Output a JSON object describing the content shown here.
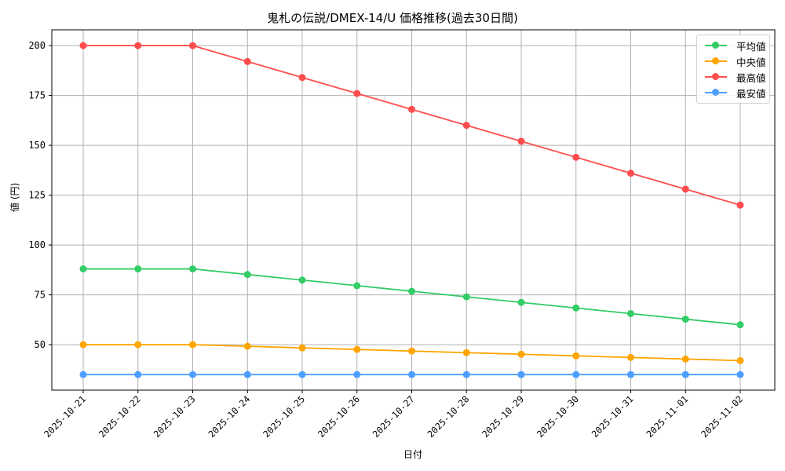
{
  "chart_data": {
    "type": "line",
    "title": "鬼札の伝説/DMEX-14/U 価格推移(過去30日間)",
    "xlabel": "日付",
    "ylabel": "値 (円)",
    "x": [
      "2025-10-21",
      "2025-10-22",
      "2025-10-23",
      "2025-10-24",
      "2025-10-25",
      "2025-10-26",
      "2025-10-27",
      "2025-10-28",
      "2025-10-29",
      "2025-10-30",
      "2025-10-31",
      "2025-11-01",
      "2025-11-02"
    ],
    "series": [
      {
        "name": "平均値",
        "color": "#33cc66",
        "values": [
          88,
          88,
          88,
          85.2,
          82.4,
          79.6,
          76.8,
          74,
          71.2,
          68.4,
          65.6,
          62.8,
          60
        ]
      },
      {
        "name": "中央値",
        "color": "#ffa500",
        "values": [
          50,
          50,
          50,
          49.2,
          48.4,
          47.6,
          46.8,
          46,
          45.2,
          44.4,
          43.6,
          42.8,
          42
        ]
      },
      {
        "name": "最高値",
        "color": "#ff4d4d",
        "values": [
          200,
          200,
          200,
          192,
          184,
          176,
          168,
          160,
          152,
          144,
          136,
          128,
          120
        ]
      },
      {
        "name": "最安値",
        "color": "#4d9fff",
        "values": [
          35,
          35,
          35,
          35,
          35,
          35,
          35,
          35,
          35,
          35,
          35,
          35,
          35
        ]
      }
    ],
    "yticks": [
      50,
      75,
      100,
      125,
      150,
      175,
      200
    ],
    "ylim": [
      27.2,
      207.9
    ],
    "grid": true,
    "legend_position": "upper right",
    "markers": "circle"
  }
}
